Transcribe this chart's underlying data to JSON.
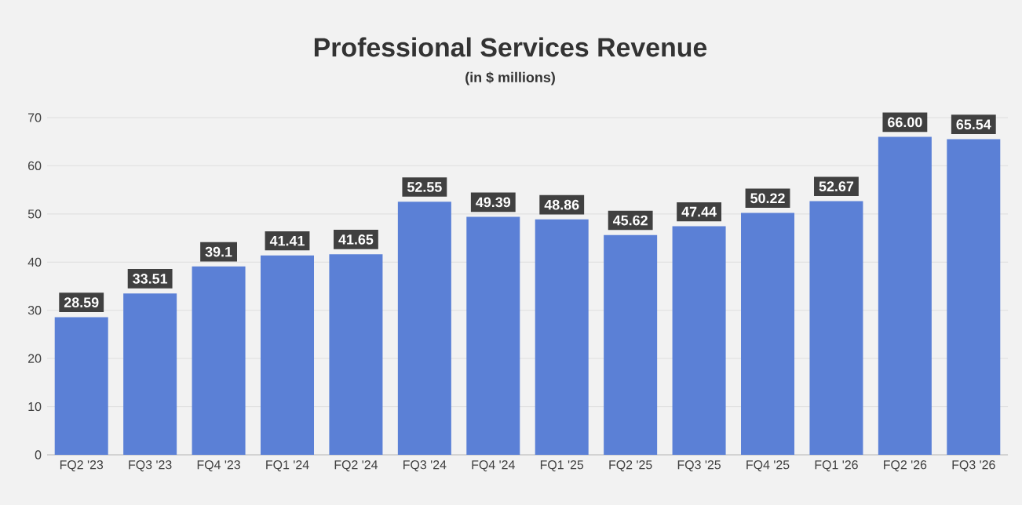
{
  "chart_data": {
    "type": "bar",
    "title": "Professional Services Revenue",
    "subtitle": "(in $ millions)",
    "categories": [
      "FQ2 '23",
      "FQ3 '23",
      "FQ4 '23",
      "FQ1 '24",
      "FQ2 '24",
      "FQ3 '24",
      "FQ4 '24",
      "FQ1 '25",
      "FQ2 '25",
      "FQ3 '25",
      "FQ4 '25",
      "FQ1 '26",
      "FQ2 '26",
      "FQ3 '26"
    ],
    "values": [
      28.59,
      33.51,
      39.1,
      41.41,
      41.65,
      52.55,
      49.39,
      48.86,
      45.62,
      47.44,
      50.22,
      52.67,
      66.0,
      65.54
    ],
    "value_labels": [
      "28.59",
      "33.51",
      "39.1",
      "41.41",
      "41.65",
      "52.55",
      "49.39",
      "48.86",
      "45.62",
      "47.44",
      "50.22",
      "52.67",
      "66.00",
      "65.54"
    ],
    "color": "#5b80d6",
    "ylim": [
      0,
      70
    ],
    "yticks": [
      0,
      10,
      20,
      30,
      40,
      50,
      60,
      70
    ],
    "grid": "y"
  }
}
